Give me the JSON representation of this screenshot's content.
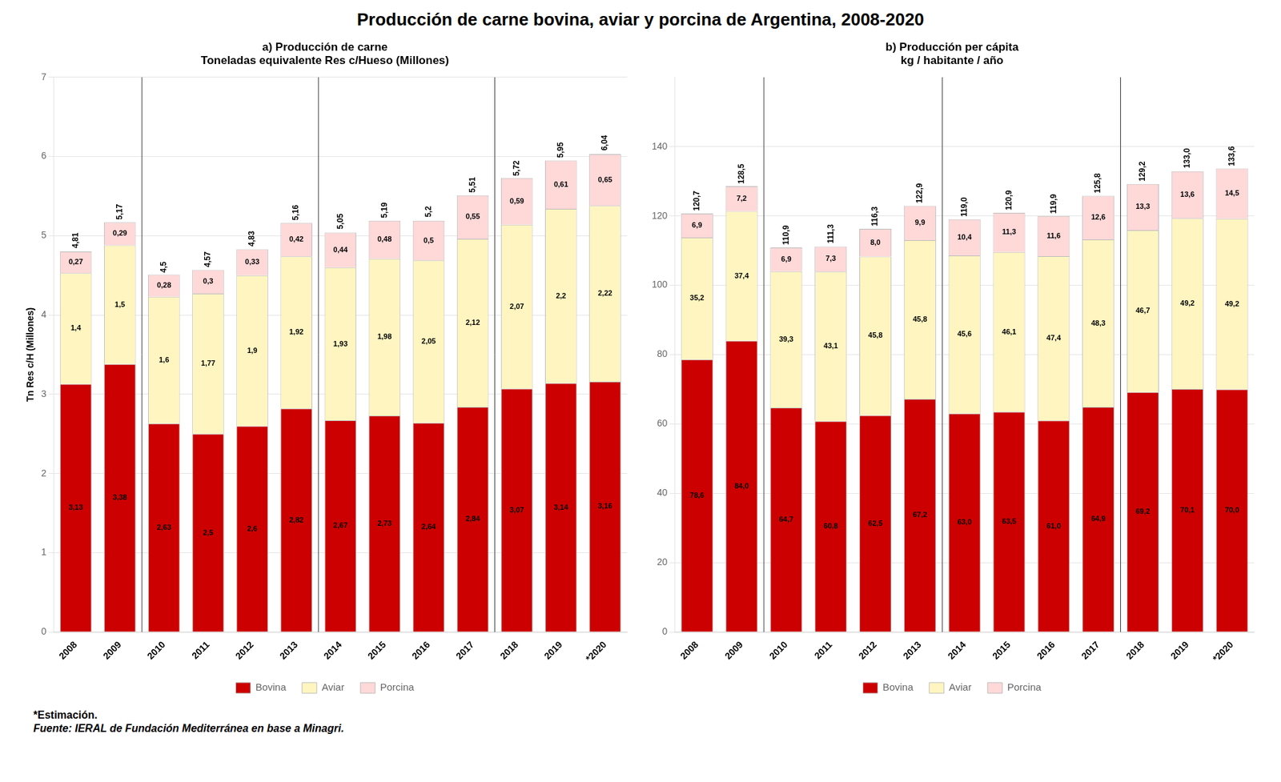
{
  "title": "Producción de carne bovina, aviar y porcina de Argentina, 2008-2020",
  "annotations": [
    "*Estimación.",
    "Fuente: IERAL de Fundación Mediterránea en base a Minagri."
  ],
  "chart_data": [
    {
      "type": "bar",
      "title": "a) Producción de carne\nToneladas equivalente Res c/Hueso (Millones)",
      "categories": [
        "2008",
        "2009",
        "2010",
        "2011",
        "2012",
        "2013",
        "2014",
        "2015",
        "2016",
        "2017",
        "2018",
        "2019",
        "*2020"
      ],
      "stacked": true,
      "data_labels": true,
      "grid": true,
      "legend": "bottom",
      "ylabel": "Tn Res c/H (Millones)",
      "ylim": [
        0,
        7
      ],
      "yticks": [
        0,
        1,
        2,
        3,
        4,
        5,
        6,
        7
      ],
      "vlines": [
        1.5,
        5.5,
        9.5
      ],
      "series": [
        {
          "name": "Bovina",
          "color": "#CC0000",
          "values": [
            3.13,
            3.38,
            2.63,
            2.5,
            2.6,
            2.82,
            2.67,
            2.73,
            2.64,
            2.84,
            3.07,
            3.14,
            3.16
          ],
          "value_labels": [
            "3,13",
            "3,38",
            "2,63",
            "2,5",
            "2,6",
            "2,82",
            "2,67",
            "2,73",
            "2,64",
            "2,84",
            "3,07",
            "3,14",
            "3,16"
          ]
        },
        {
          "name": "Aviar",
          "color": "#FFF5C0",
          "values": [
            1.4,
            1.5,
            1.6,
            1.77,
            1.9,
            1.92,
            1.93,
            1.98,
            2.05,
            2.12,
            2.07,
            2.2,
            2.22
          ],
          "value_labels": [
            "1,4",
            "1,5",
            "1,6",
            "1,77",
            "1,9",
            "1,92",
            "1,93",
            "1,98",
            "2,05",
            "2,12",
            "2,07",
            "2,2",
            "2,22"
          ]
        },
        {
          "name": "Porcina",
          "color": "#FFD8D8",
          "values": [
            0.27,
            0.29,
            0.28,
            0.3,
            0.33,
            0.42,
            0.44,
            0.48,
            0.5,
            0.55,
            0.59,
            0.61,
            0.65
          ],
          "value_labels": [
            "0,27",
            "0,29",
            "0,28",
            "0,3",
            "0,33",
            "0,42",
            "0,44",
            "0,48",
            "0,5",
            "0,55",
            "0,59",
            "0,61",
            "0,65"
          ]
        }
      ],
      "totals": [
        4.81,
        5.17,
        4.5,
        4.57,
        4.83,
        5.16,
        5.05,
        5.19,
        5.2,
        5.51,
        5.72,
        5.95,
        6.04
      ],
      "totals_labels": [
        "4,81",
        "5,17",
        "4,5",
        "4,57",
        "4,83",
        "5,16",
        "5,05",
        "5,19",
        "5,2",
        "5,51",
        "5,72",
        "5,95",
        "6,04"
      ]
    },
    {
      "type": "bar",
      "title": "b) Producción per cápita\nkg / habitante / año",
      "categories": [
        "2008",
        "2009",
        "2010",
        "2011",
        "2012",
        "2013",
        "2014",
        "2015",
        "2016",
        "2017",
        "2018",
        "2019",
        "*2020"
      ],
      "stacked": true,
      "data_labels": true,
      "grid": true,
      "legend": "bottom",
      "ylim": [
        0,
        160
      ],
      "yticks": [
        0,
        20,
        40,
        60,
        80,
        100,
        120,
        140
      ],
      "vlines": [
        1.5,
        5.5,
        9.5
      ],
      "series": [
        {
          "name": "Bovina",
          "color": "#CC0000",
          "values": [
            78.6,
            84.0,
            64.7,
            60.8,
            62.5,
            67.2,
            63.0,
            63.5,
            61.0,
            64.9,
            69.2,
            70.1,
            70.0
          ],
          "value_labels": [
            "78,6",
            "84,0",
            "64,7",
            "60,8",
            "62,5",
            "67,2",
            "63,0",
            "63,5",
            "61,0",
            "64,9",
            "69,2",
            "70,1",
            "70,0"
          ]
        },
        {
          "name": "Aviar",
          "color": "#FFF5C0",
          "values": [
            35.2,
            37.4,
            39.3,
            43.1,
            45.8,
            45.8,
            45.6,
            46.1,
            47.4,
            48.3,
            46.7,
            49.2,
            49.2
          ],
          "value_labels": [
            "35,2",
            "37,4",
            "39,3",
            "43,1",
            "45,8",
            "45,8",
            "45,6",
            "46,1",
            "47,4",
            "48,3",
            "46,7",
            "49,2",
            "49,2"
          ]
        },
        {
          "name": "Porcina",
          "color": "#FFD8D8",
          "values": [
            6.9,
            7.2,
            6.9,
            7.3,
            8.0,
            9.9,
            10.4,
            11.3,
            11.6,
            12.6,
            13.3,
            13.6,
            14.5
          ],
          "value_labels": [
            "6,9",
            "7,2",
            "6,9",
            "7,3",
            "8,0",
            "9,9",
            "10,4",
            "11,3",
            "11,6",
            "12,6",
            "13,3",
            "13,6",
            "14,5"
          ]
        }
      ],
      "totals": [
        120.7,
        128.5,
        110.9,
        111.3,
        116.3,
        122.9,
        119.0,
        120.9,
        119.9,
        125.8,
        129.2,
        133.0,
        133.6
      ],
      "totals_labels": [
        "120,7",
        "128,5",
        "110,9",
        "111,3",
        "116,3",
        "122,9",
        "119,0",
        "120,9",
        "119,9",
        "125,8",
        "129,2",
        "133,0",
        "133,6"
      ]
    }
  ]
}
